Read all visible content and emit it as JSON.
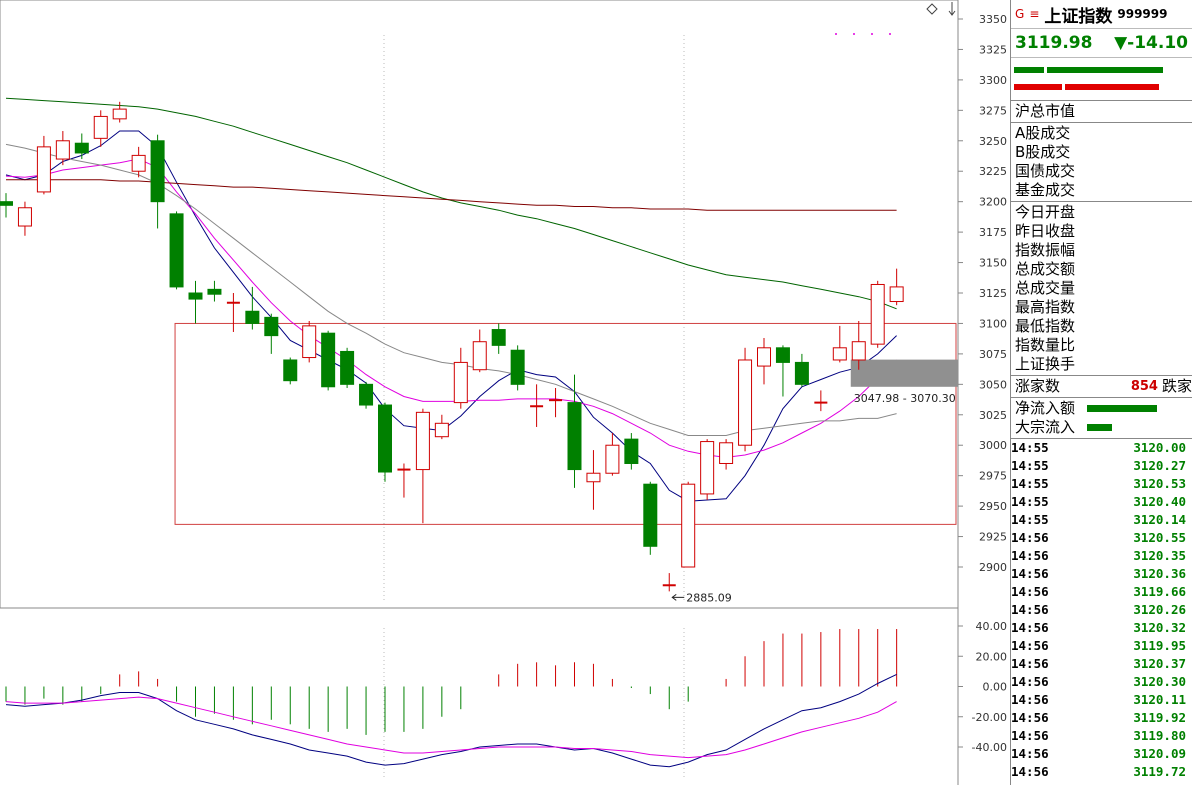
{
  "chart_data": {
    "type": "candlestick",
    "main": {
      "ylim": [
        2870,
        3360
      ],
      "y_ticks": [
        "3350",
        "3325",
        "3300",
        "3275",
        "3250",
        "3225",
        "3200",
        "3175",
        "3150",
        "3125",
        "3100",
        "3075",
        "3050",
        "3025",
        "3000",
        "2975",
        "2950",
        "2925",
        "2900"
      ],
      "candles": [
        [
          3200,
          3197,
          3207,
          3187
        ],
        [
          3180,
          3195,
          3200,
          3172
        ],
        [
          3208,
          3245,
          3254,
          3206
        ],
        [
          3235,
          3250,
          3258,
          3230
        ],
        [
          3248,
          3240,
          3256,
          3235
        ],
        [
          3252,
          3270,
          3275,
          3245
        ],
        [
          3268,
          3276,
          3282,
          3265
        ],
        [
          3225,
          3238,
          3245,
          3220
        ],
        [
          3250,
          3200,
          3255,
          3178
        ],
        [
          3190,
          3130,
          3192,
          3128
        ],
        [
          3125,
          3120,
          3135,
          3100
        ],
        [
          3128,
          3124,
          3135,
          3118
        ],
        [
          3117,
          3117,
          3125,
          3093
        ],
        [
          3110,
          3100,
          3130,
          3095
        ],
        [
          3105,
          3090,
          3108,
          3075
        ],
        [
          3070,
          3053,
          3072,
          3050
        ],
        [
          3072,
          3098,
          3102,
          3068
        ],
        [
          3092,
          3048,
          3094,
          3045
        ],
        [
          3077,
          3050,
          3080,
          3047
        ],
        [
          3050,
          3033,
          3052,
          3030
        ],
        [
          3033,
          2978,
          3035,
          2970
        ],
        [
          2980,
          2980,
          2985,
          2957
        ],
        [
          2980,
          3027,
          3030,
          2936
        ],
        [
          3007,
          3018,
          3025,
          3005
        ],
        [
          3035,
          3068,
          3080,
          3030
        ],
        [
          3062,
          3085,
          3095,
          3060
        ],
        [
          3095,
          3082,
          3100,
          3075
        ],
        [
          3078,
          3050,
          3082,
          3045
        ],
        [
          3032,
          3032,
          3050,
          3015
        ],
        [
          3037,
          3037,
          3047,
          3023
        ],
        [
          3035,
          2980,
          3058,
          2965
        ],
        [
          2970,
          2977,
          2996,
          2947
        ],
        [
          2977,
          3000,
          3010,
          2975
        ],
        [
          3005,
          2985,
          3010,
          2980
        ],
        [
          2968,
          2917,
          2970,
          2910
        ],
        [
          2885,
          2885,
          2895,
          2880
        ],
        [
          2900,
          2968,
          2970,
          2900
        ],
        [
          2960,
          3003,
          3005,
          2955
        ],
        [
          2985,
          3002,
          3005,
          2980
        ],
        [
          3000,
          3070,
          3080,
          2995
        ],
        [
          3065,
          3080,
          3088,
          3050
        ],
        [
          3080,
          3068,
          3082,
          3040
        ],
        [
          3068,
          3050,
          3075,
          3048
        ],
        [
          3035,
          3035,
          3045,
          3028
        ],
        [
          3070,
          3080,
          3098,
          3068
        ],
        [
          3070,
          3085,
          3102,
          3062
        ],
        [
          3083,
          3132,
          3135,
          3080
        ],
        [
          3118,
          3130,
          3145,
          3115
        ]
      ],
      "ma_series": [
        {
          "color": "#000080",
          "values": [
            3222,
            3218,
            3222,
            3233,
            3238,
            3246,
            3258,
            3258,
            3245,
            3216,
            3188,
            3162,
            3142,
            3122,
            3105,
            3086,
            3078,
            3070,
            3062,
            3051,
            3030,
            3016,
            3014,
            3012,
            3024,
            3040,
            3053,
            3062,
            3058,
            3056,
            3044,
            3023,
            3010,
            2995,
            2985,
            2963,
            2954,
            2955,
            2956,
            2975,
            3000,
            3030,
            3048,
            3054,
            3060,
            3064,
            3075,
            3090
          ]
        },
        {
          "color": "#e000e0",
          "values": [
            3221,
            3220,
            3222,
            3226,
            3228,
            3230,
            3232,
            3235,
            3228,
            3208,
            3190,
            3170,
            3152,
            3134,
            3117,
            3102,
            3090,
            3080,
            3070,
            3058,
            3048,
            3040,
            3036,
            3036,
            3036,
            3037,
            3037,
            3038,
            3038,
            3038,
            3036,
            3032,
            3026,
            3018,
            3010,
            3000,
            2995,
            2992,
            2990,
            2992,
            2996,
            3002,
            3010,
            3018,
            3028,
            3040,
            3055,
            3070
          ]
        },
        {
          "color": "#888888",
          "values": [
            3247,
            3244,
            3240,
            3236,
            3233,
            3230,
            3226,
            3222,
            3215,
            3205,
            3194,
            3182,
            3170,
            3158,
            3146,
            3134,
            3122,
            3110,
            3100,
            3092,
            3083,
            3076,
            3072,
            3068,
            3066,
            3063,
            3061,
            3058,
            3054,
            3050,
            3044,
            3038,
            3032,
            3025,
            3018,
            3013,
            3008,
            3008,
            3008,
            3012,
            3014,
            3016,
            3018,
            3020,
            3020,
            3022,
            3022,
            3026
          ]
        },
        {
          "color": "#006400",
          "values": [
            3285,
            3284,
            3283,
            3282,
            3281,
            3280,
            3279,
            3278,
            3276,
            3273,
            3270,
            3266,
            3262,
            3257,
            3252,
            3247,
            3242,
            3237,
            3232,
            3226,
            3220,
            3214,
            3208,
            3203,
            3199,
            3196,
            3193,
            3189,
            3186,
            3182,
            3178,
            3173,
            3168,
            3163,
            3158,
            3153,
            3148,
            3144,
            3140,
            3138,
            3136,
            3134,
            3131,
            3128,
            3125,
            3122,
            3118,
            3112
          ]
        },
        {
          "color": "#800000",
          "values": [
            3218,
            3218,
            3218,
            3218,
            3218,
            3218,
            3217,
            3217,
            3216,
            3215,
            3214,
            3213,
            3212,
            3212,
            3211,
            3210,
            3209,
            3208,
            3207,
            3206,
            3205,
            3204,
            3203,
            3202,
            3201,
            3200,
            3199,
            3198,
            3197,
            3197,
            3196,
            3196,
            3195,
            3195,
            3194,
            3194,
            3194,
            3193,
            3193,
            3193,
            3193,
            3193,
            3193,
            3193,
            3193,
            3193,
            3193,
            3193
          ]
        }
      ],
      "box": {
        "from": 9,
        "to": 55,
        "high": 3100,
        "low": 2935
      },
      "low_annotation": "2885.09",
      "range_label": "3047.98 - 3070.30"
    },
    "indicator": {
      "ylim": [
        -50,
        48
      ],
      "y_ticks": [
        "40.00",
        "20.00",
        "0.00",
        "-20.00",
        "-40.00"
      ],
      "histogram": [
        -10,
        -12,
        -8,
        -12,
        -10,
        -5,
        8,
        10,
        5,
        -10,
        -20,
        -18,
        -22,
        -25,
        -22,
        -25,
        -28,
        -30,
        -28,
        -32,
        -30,
        -30,
        -28,
        -20,
        -15,
        0,
        8,
        15,
        16,
        14,
        16,
        15,
        5,
        -1,
        -5,
        -15,
        -10,
        0,
        5,
        20,
        30,
        35,
        35,
        36,
        38,
        38,
        38,
        38
      ],
      "dif": [
        -12,
        -13,
        -12,
        -11,
        -9,
        -6,
        -4,
        -4,
        -8,
        -16,
        -22,
        -25,
        -28,
        -32,
        -35,
        -38,
        -42,
        -44,
        -46,
        -50,
        -52,
        -51,
        -48,
        -45,
        -43,
        -40,
        -39,
        -38,
        -38,
        -40,
        -42,
        -41,
        -44,
        -48,
        -52,
        -53,
        -50,
        -45,
        -42,
        -35,
        -28,
        -22,
        -16,
        -14,
        -10,
        -5,
        2,
        8
      ],
      "dea": [
        -10,
        -11,
        -11,
        -11,
        -10,
        -9,
        -8,
        -7,
        -8,
        -11,
        -14,
        -17,
        -20,
        -23,
        -26,
        -29,
        -32,
        -35,
        -38,
        -40,
        -42,
        -44,
        -44,
        -43,
        -42,
        -41,
        -40,
        -40,
        -40,
        -40,
        -41,
        -41,
        -42,
        -43,
        -45,
        -46,
        -47,
        -46,
        -45,
        -42,
        -38,
        -34,
        -30,
        -27,
        -24,
        -21,
        -17,
        -10
      ]
    }
  },
  "side": {
    "header": {
      "g": "G",
      "eq": "≡",
      "name": "上证指数",
      "code": "999999"
    },
    "price": "3119.98",
    "change": "▼-14.10",
    "labels_a": [
      "沪总市值"
    ],
    "labels_b": [
      "A股成交",
      "B股成交",
      "国债成交",
      "基金成交"
    ],
    "labels_c": [
      "今日开盘",
      "昨日收盘",
      "指数振幅",
      "总成交额",
      "总成交量",
      "最高指数",
      "最低指数",
      "指数量比",
      "上证换手"
    ],
    "rise_label": "涨家数",
    "rise_value": "854",
    "fall_label": "跌家",
    "flow": [
      {
        "label": "净流入额",
        "fraction": 0.7
      },
      {
        "label": "大宗流入",
        "fraction": 0.25
      }
    ],
    "ticks": [
      {
        "time": "14:55",
        "price": "3120.00"
      },
      {
        "time": "14:55",
        "price": "3120.27"
      },
      {
        "time": "14:55",
        "price": "3120.53"
      },
      {
        "time": "14:55",
        "price": "3120.40"
      },
      {
        "time": "14:55",
        "price": "3120.14"
      },
      {
        "time": "14:56",
        "price": "3120.55"
      },
      {
        "time": "14:56",
        "price": "3120.35"
      },
      {
        "time": "14:56",
        "price": "3120.36"
      },
      {
        "time": "14:56",
        "price": "3119.66"
      },
      {
        "time": "14:56",
        "price": "3120.26"
      },
      {
        "time": "14:56",
        "price": "3120.32"
      },
      {
        "time": "14:56",
        "price": "3119.95"
      },
      {
        "time": "14:56",
        "price": "3120.37"
      },
      {
        "time": "14:56",
        "price": "3120.30"
      },
      {
        "time": "14:56",
        "price": "3120.11"
      },
      {
        "time": "14:56",
        "price": "3119.92"
      },
      {
        "time": "14:56",
        "price": "3119.80"
      },
      {
        "time": "14:56",
        "price": "3120.09"
      },
      {
        "time": "14:56",
        "price": "3119.72"
      }
    ]
  }
}
